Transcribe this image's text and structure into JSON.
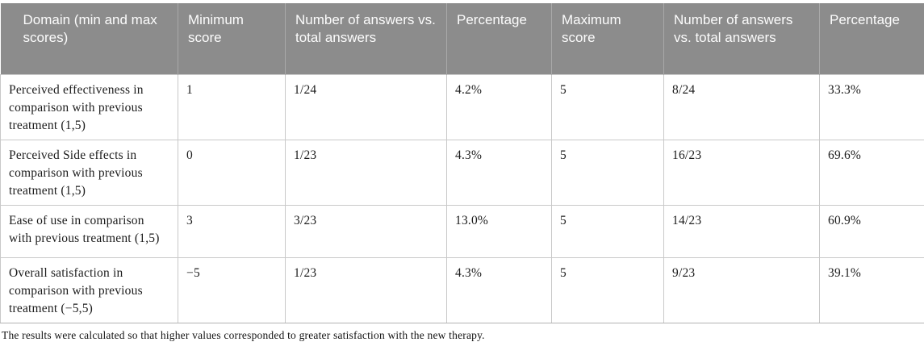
{
  "table": {
    "columns": [
      "Domain (min and max scores)",
      "Minimum score",
      "Number of answers vs. total answers",
      "Percentage",
      "Maximum score",
      "Number of answers vs. total answers",
      "Percentage"
    ],
    "rows": [
      [
        "Perceived effectiveness in comparison with previous treatment (1,5)",
        "1",
        "1/24",
        "4.2%",
        "5",
        "8/24",
        "33.3%"
      ],
      [
        "Perceived Side effects in comparison with previous treatment (1,5)",
        "0",
        "1/23",
        "4.3%",
        "5",
        "16/23",
        "69.6%"
      ],
      [
        "Ease of use in comparison with previous treatment (1,5)",
        "3",
        "3/23",
        "13.0%",
        "5",
        "14/23",
        "60.9%"
      ],
      [
        "Overall satisfaction in comparison with previous treatment (−5,5)",
        "−5",
        "1/23",
        "4.3%",
        "5",
        "9/23",
        "39.1%"
      ]
    ],
    "footnote": "The results were calculated so that higher values corresponded to greater satisfaction with the new therapy."
  },
  "colors": {
    "header_bg": "#8c8c8c",
    "header_text": "#fcfcfc",
    "header_divider": "#a9a9a9",
    "body_border": "#c9c9c9",
    "body_text": "#1c1c1c"
  }
}
